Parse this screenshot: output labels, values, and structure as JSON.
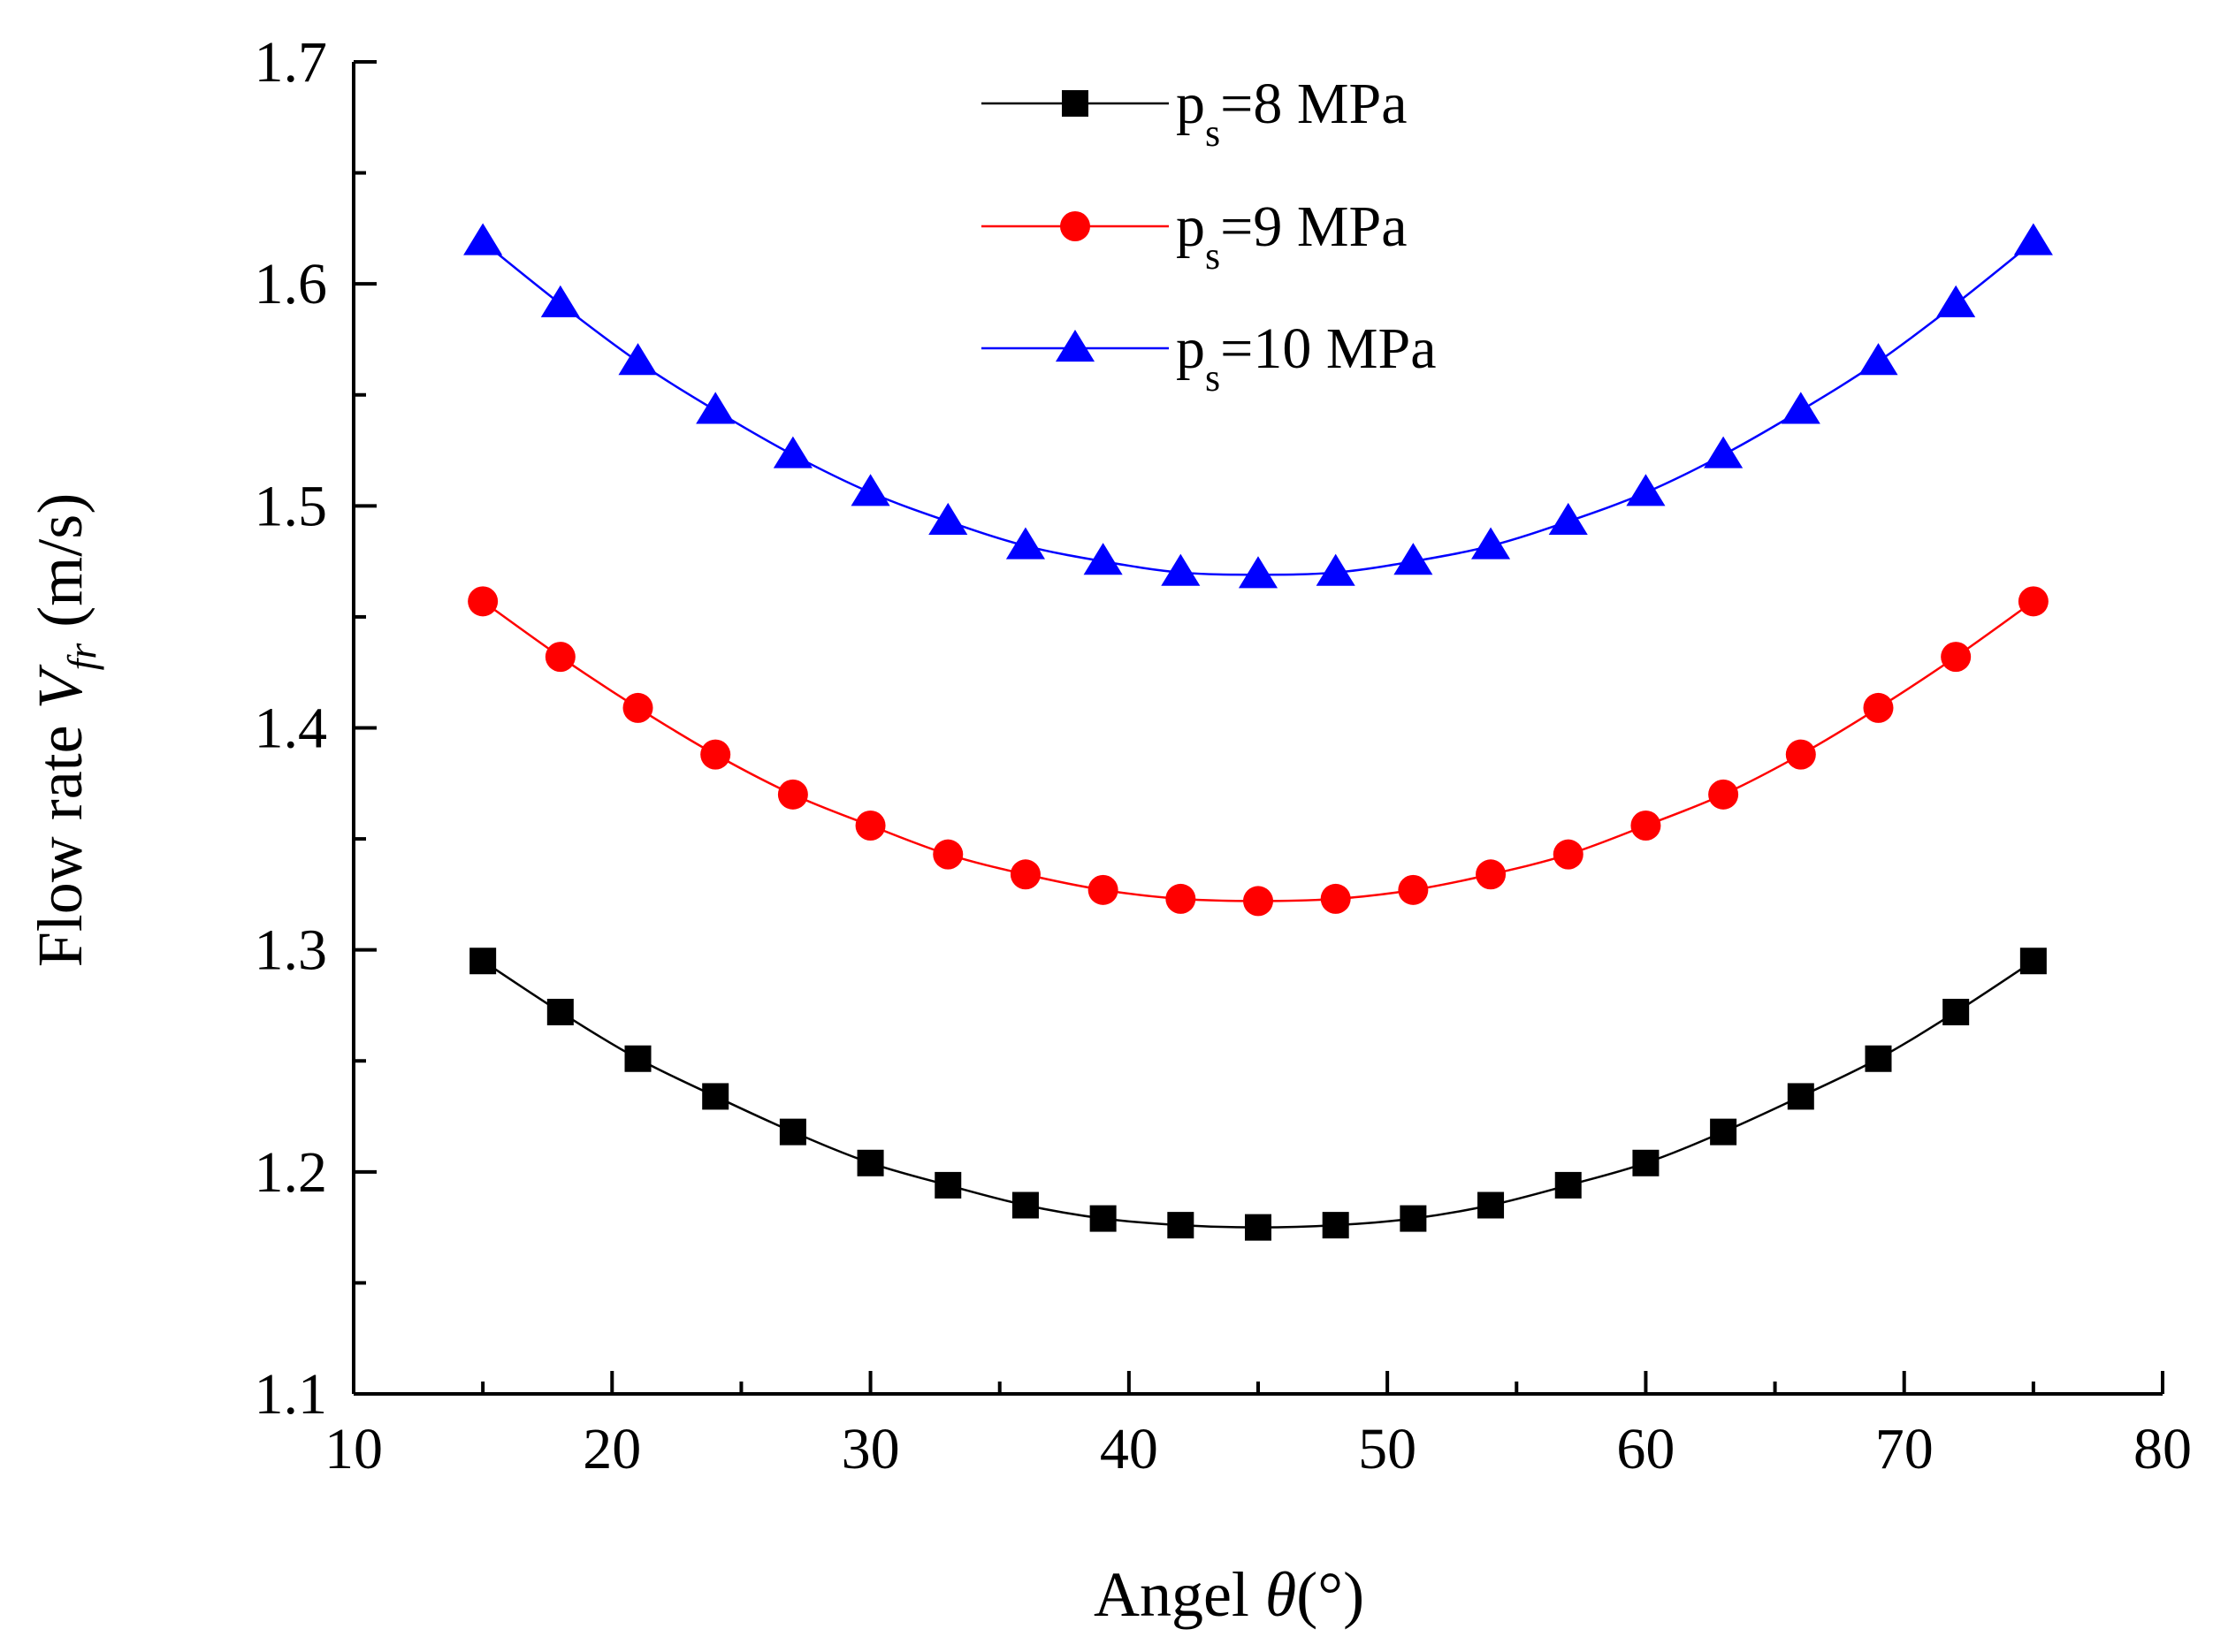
{
  "chart_data": {
    "type": "line",
    "title": "",
    "xlabel": "Angel θ(°)",
    "xlabel_parts": {
      "prefix": "Angel ",
      "symbol": "θ",
      "suffix": "(°)"
    },
    "ylabel": "Flow rate V_fr (m/s)",
    "ylabel_parts": {
      "prefix": "Flow rate ",
      "symbol": "V",
      "subscript": "fr",
      "suffix": " (m/s)"
    },
    "xlim": [
      10,
      80
    ],
    "ylim": [
      1.1,
      1.7
    ],
    "xticks": [
      10,
      20,
      30,
      40,
      50,
      60,
      70,
      80
    ],
    "xtick_labels": [
      "10",
      "20",
      "30",
      "40",
      "50",
      "60",
      "70",
      "80"
    ],
    "yticks": [
      1.1,
      1.2,
      1.3,
      1.4,
      1.5,
      1.6,
      1.7
    ],
    "ytick_labels": [
      "1.1",
      "1.2",
      "1.3",
      "1.4",
      "1.5",
      "1.6",
      "1.7"
    ],
    "grid": false,
    "legend_position": "top-center",
    "x": [
      15,
      18,
      21,
      24,
      27,
      30,
      33,
      36,
      39,
      42,
      45,
      48,
      51,
      54,
      57,
      60,
      63,
      66,
      69,
      72,
      75
    ],
    "series": [
      {
        "name": "ps=8 MPa",
        "label_main": "p",
        "label_sub": "s",
        "label_rest": "=8 MPa",
        "color": "#000000",
        "marker": "square",
        "values": [
          1.295,
          1.272,
          1.251,
          1.234,
          1.218,
          1.204,
          1.194,
          1.185,
          1.179,
          1.176,
          1.175,
          1.176,
          1.179,
          1.185,
          1.194,
          1.204,
          1.218,
          1.234,
          1.251,
          1.272,
          1.295
        ]
      },
      {
        "name": "ps=9 MPa",
        "label_main": "p",
        "label_sub": "s",
        "label_rest": "=9 MPa",
        "color": "#ff0000",
        "marker": "circle",
        "values": [
          1.457,
          1.432,
          1.409,
          1.388,
          1.37,
          1.356,
          1.343,
          1.334,
          1.327,
          1.323,
          1.322,
          1.323,
          1.327,
          1.334,
          1.343,
          1.356,
          1.37,
          1.388,
          1.409,
          1.432,
          1.457
        ]
      },
      {
        "name": "ps=10 MPa",
        "label_main": "p",
        "label_sub": "s",
        "label_rest": "=10 MPa",
        "color": "#0000ff",
        "marker": "triangle",
        "values": [
          1.619,
          1.591,
          1.565,
          1.543,
          1.523,
          1.506,
          1.493,
          1.482,
          1.475,
          1.47,
          1.469,
          1.47,
          1.475,
          1.482,
          1.493,
          1.506,
          1.523,
          1.543,
          1.565,
          1.591,
          1.619
        ]
      }
    ]
  }
}
